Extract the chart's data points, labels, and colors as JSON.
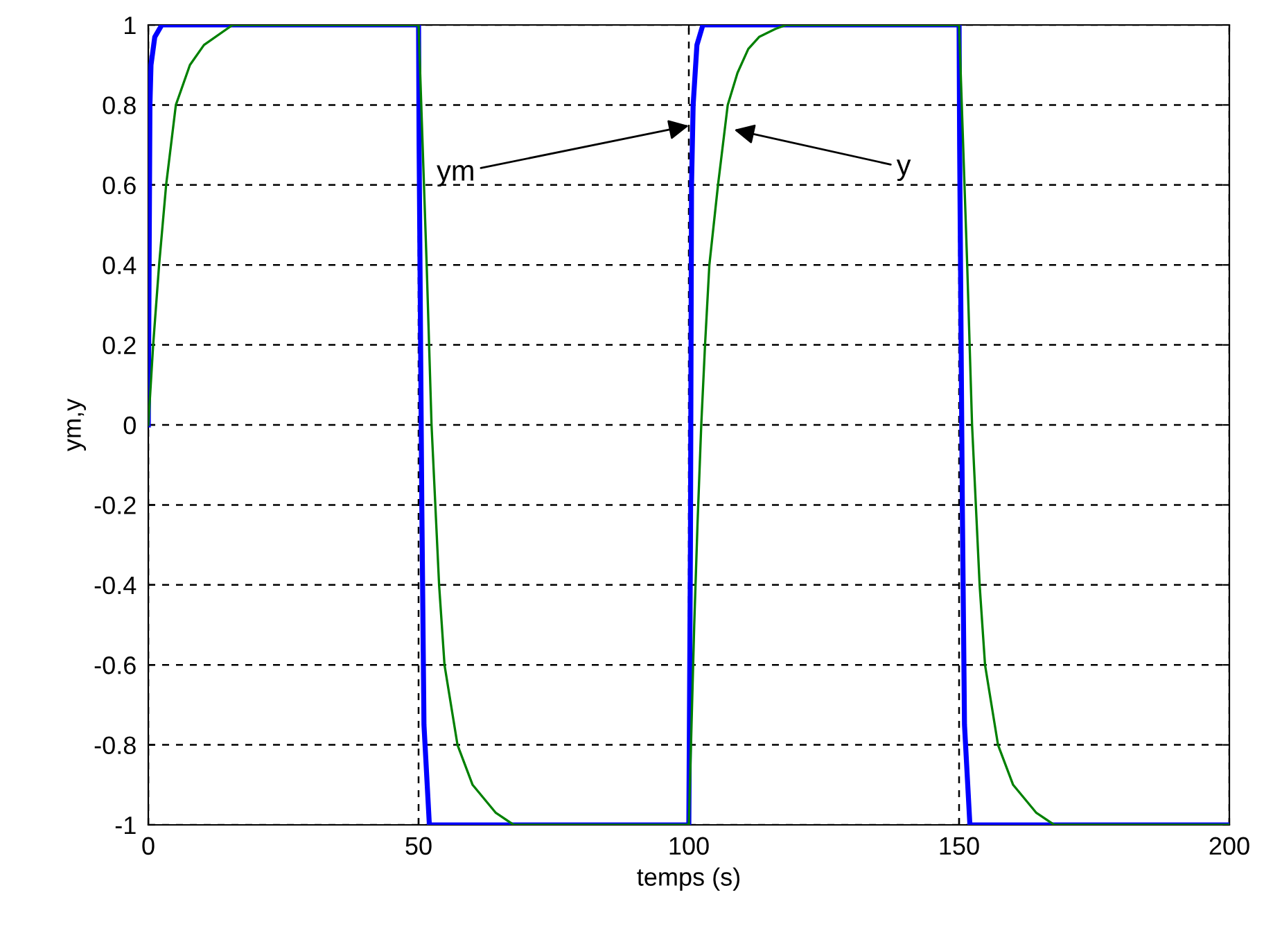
{
  "chart_data": {
    "type": "line",
    "xlabel": "temps (s)",
    "ylabel": "ym,y",
    "xlim": [
      0,
      200
    ],
    "ylim": [
      -1,
      1
    ],
    "xticks": [
      0,
      50,
      100,
      150,
      200
    ],
    "yticks": [
      -1,
      -0.8,
      -0.6,
      -0.4,
      -0.2,
      0,
      0.2,
      0.4,
      0.6,
      0.8,
      1
    ],
    "grid": true,
    "line_style": "solid",
    "marker": "none",
    "series": [
      {
        "color": "#0000ff",
        "x": [
          0,
          0.3,
          0.5,
          1.2,
          2.5,
          50,
          50.1,
          50.6,
          51,
          52,
          100,
          100.3,
          100.5,
          100.8,
          101.5,
          102.6,
          150,
          150.1,
          150.6,
          151,
          152,
          200
        ],
        "values": [
          0,
          0.8,
          0.9,
          0.97,
          1,
          1,
          0.7,
          -0.2,
          -0.75,
          -1,
          -1,
          -0.3,
          0.6,
          0.8,
          0.95,
          1,
          1,
          0.7,
          -0.2,
          -0.75,
          -1,
          -1
        ]
      },
      {
        "color": "#008000",
        "x": [
          0,
          0.9,
          2,
          3.3,
          5.1,
          7.7,
          10.3,
          15.6,
          50,
          50.5,
          51.5,
          52.4,
          53.8,
          54.8,
          57.2,
          60,
          64.3,
          67.6,
          100,
          100.5,
          101,
          101.6,
          102.3,
          103,
          103.8,
          105.4,
          107.2,
          109,
          111,
          113,
          116,
          118,
          150,
          150.5,
          151.5,
          152.4,
          153.8,
          154.8,
          157.2,
          160,
          164.3,
          167.6,
          200
        ],
        "values": [
          0,
          0.2,
          0.4,
          0.6,
          0.8,
          0.9,
          0.95,
          1,
          1,
          0.8,
          0.4,
          0,
          -0.4,
          -0.6,
          -0.8,
          -0.9,
          -0.97,
          -1,
          -1,
          -0.75,
          -0.5,
          -0.25,
          0,
          0.2,
          0.4,
          0.6,
          0.8,
          0.88,
          0.94,
          0.97,
          0.99,
          1,
          1,
          0.8,
          0.4,
          0,
          -0.4,
          -0.6,
          -0.8,
          -0.9,
          -0.97,
          -1,
          -1
        ]
      }
    ],
    "annotations": [
      {
        "text": "ym",
        "x": 100.7,
        "y": 0.75
      },
      {
        "text": "y",
        "x": 107.7,
        "y": 0.74
      }
    ]
  }
}
